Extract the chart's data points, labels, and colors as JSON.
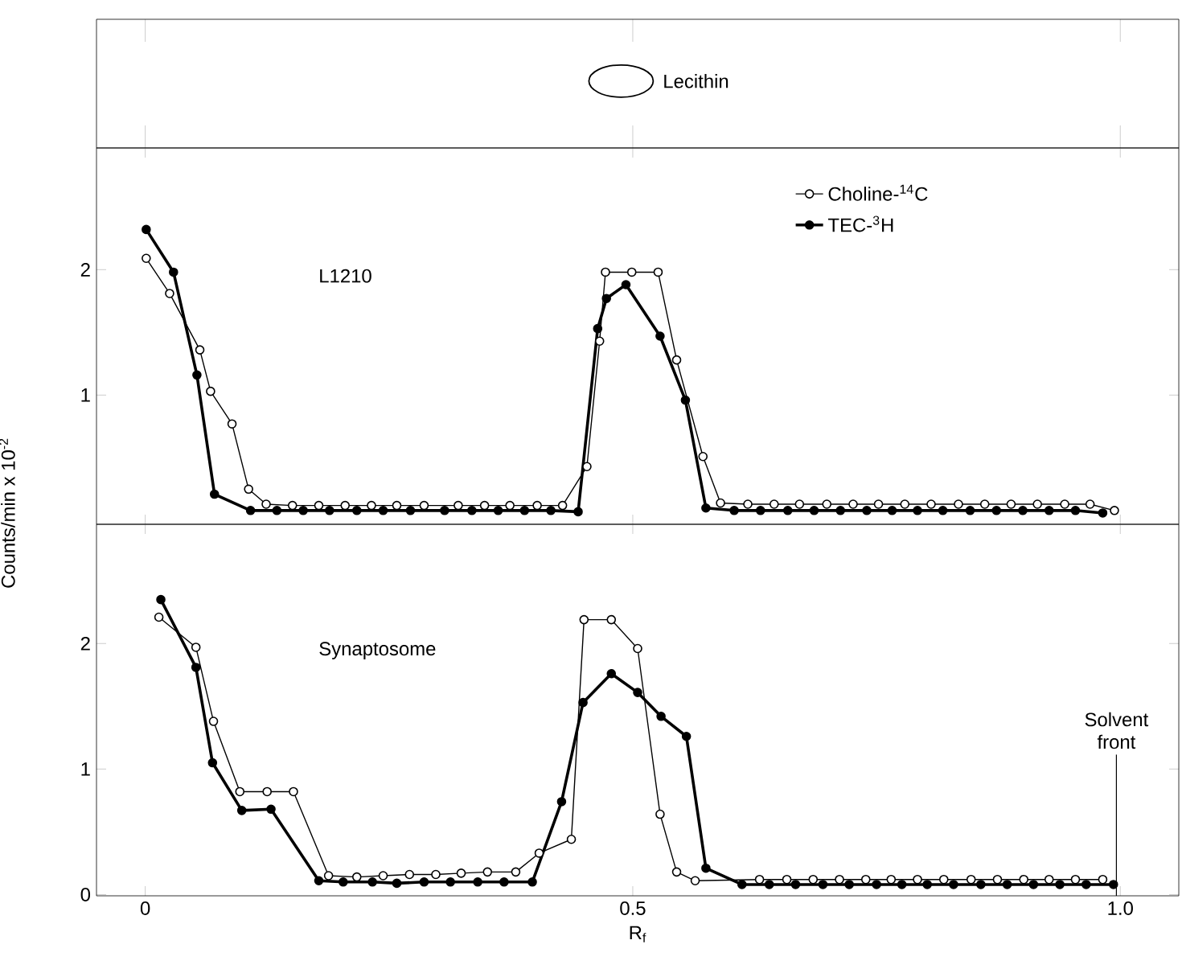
{
  "chart_data": [
    {
      "type": "other",
      "annotations": [
        "Lecithin"
      ]
    },
    {
      "type": "line",
      "annotations": [
        "L1210"
      ],
      "ylabel": "Counts/min x 10$^{-2}$",
      "xlim": [
        -0.05,
        1.06
      ],
      "ylim": [
        -0.03,
        2.97
      ],
      "yticks": [
        1,
        2
      ],
      "tick_labels": "y",
      "marker": "circle",
      "legend": "top right",
      "series": [
        {
          "name": "Choline-$^{14}$C",
          "color": "#000000",
          "x": [
            0.001,
            0.025,
            0.056,
            0.067,
            0.089,
            0.106,
            0.124,
            0.151,
            0.178,
            0.205,
            0.232,
            0.258,
            0.286,
            0.321,
            0.348,
            0.374,
            0.402,
            0.428,
            0.453,
            0.466,
            0.472,
            0.499,
            0.526,
            0.545,
            0.572,
            0.59,
            0.618,
            0.645,
            0.671,
            0.699,
            0.726,
            0.752,
            0.779,
            0.806,
            0.834,
            0.861,
            0.888,
            0.915,
            0.943,
            0.969,
            0.994
          ],
          "values": [
            2.09,
            1.81,
            1.36,
            1.03,
            0.77,
            0.25,
            0.13,
            0.12,
            0.12,
            0.12,
            0.12,
            0.12,
            0.12,
            0.12,
            0.12,
            0.12,
            0.12,
            0.12,
            0.43,
            1.43,
            1.98,
            1.98,
            1.98,
            1.28,
            0.51,
            0.14,
            0.13,
            0.13,
            0.13,
            0.13,
            0.13,
            0.13,
            0.13,
            0.13,
            0.13,
            0.13,
            0.13,
            0.13,
            0.13,
            0.13,
            0.08
          ]
        },
        {
          "name": "TEC-$^{3}$H",
          "color": "#000000",
          "x": [
            0.001,
            0.029,
            0.053,
            0.071,
            0.108,
            0.135,
            0.162,
            0.189,
            0.217,
            0.244,
            0.272,
            0.307,
            0.335,
            0.362,
            0.389,
            0.416,
            0.444,
            0.464,
            0.473,
            0.493,
            0.528,
            0.554,
            0.575,
            0.604,
            0.631,
            0.659,
            0.686,
            0.713,
            0.74,
            0.766,
            0.792,
            0.818,
            0.846,
            0.873,
            0.9,
            0.927,
            0.954,
            0.982
          ],
          "values": [
            2.32,
            1.98,
            1.16,
            0.21,
            0.08,
            0.08,
            0.08,
            0.08,
            0.08,
            0.08,
            0.08,
            0.08,
            0.08,
            0.08,
            0.08,
            0.08,
            0.07,
            1.53,
            1.77,
            1.88,
            1.47,
            0.96,
            0.1,
            0.08,
            0.08,
            0.08,
            0.08,
            0.08,
            0.08,
            0.08,
            0.08,
            0.08,
            0.08,
            0.08,
            0.08,
            0.08,
            0.08,
            0.06
          ]
        }
      ]
    },
    {
      "type": "line",
      "annotations": [
        "Synaptosome"
      ],
      "xlabel": "R$_{f}$",
      "xlim": [
        -0.05,
        1.06
      ],
      "ylim": [
        -0.01,
        2.95
      ],
      "xticks": [
        0,
        0.5,
        {
          "value": 1,
          "label": "1.0"
        }
      ],
      "yticks": [
        0,
        1,
        2
      ],
      "marker": "circle",
      "ref_lines": [
        {
          "axis": "x",
          "value": 0.996,
          "label": "Solvent front"
        }
      ],
      "series": [
        {
          "color": "#000000",
          "x": [
            0.014,
            0.052,
            0.07,
            0.097,
            0.125,
            0.152,
            0.188,
            0.217,
            0.244,
            0.271,
            0.298,
            0.324,
            0.351,
            0.38,
            0.404,
            0.437,
            0.45,
            0.478,
            0.505,
            0.528,
            0.545,
            0.564,
            0.63,
            0.658,
            0.685,
            0.712,
            0.739,
            0.765,
            0.792,
            0.819,
            0.847,
            0.874,
            0.901,
            0.927,
            0.954,
            0.982
          ],
          "values": [
            2.21,
            1.97,
            1.38,
            0.82,
            0.82,
            0.82,
            0.15,
            0.14,
            0.15,
            0.16,
            0.16,
            0.17,
            0.18,
            0.18,
            0.33,
            0.44,
            2.19,
            2.19,
            1.96,
            0.64,
            0.18,
            0.11,
            0.12,
            0.12,
            0.12,
            0.12,
            0.12,
            0.12,
            0.12,
            0.12,
            0.12,
            0.12,
            0.12,
            0.12,
            0.12,
            0.12
          ]
        },
        {
          "color": "#000000",
          "x": [
            0.016,
            0.052,
            0.069,
            0.099,
            0.129,
            0.178,
            0.203,
            0.233,
            0.258,
            0.286,
            0.313,
            0.341,
            0.368,
            0.397,
            0.427,
            0.449,
            0.478,
            0.505,
            0.529,
            0.555,
            0.575,
            0.612,
            0.64,
            0.667,
            0.695,
            0.722,
            0.75,
            0.776,
            0.802,
            0.829,
            0.857,
            0.884,
            0.911,
            0.938,
            0.965,
            0.993
          ],
          "values": [
            2.35,
            1.81,
            1.05,
            0.67,
            0.68,
            0.11,
            0.1,
            0.1,
            0.09,
            0.1,
            0.1,
            0.1,
            0.1,
            0.1,
            0.74,
            1.53,
            1.76,
            1.61,
            1.42,
            1.26,
            0.21,
            0.08,
            0.08,
            0.08,
            0.08,
            0.08,
            0.08,
            0.08,
            0.08,
            0.08,
            0.08,
            0.08,
            0.08,
            0.08,
            0.08,
            0.08
          ]
        }
      ]
    }
  ]
}
